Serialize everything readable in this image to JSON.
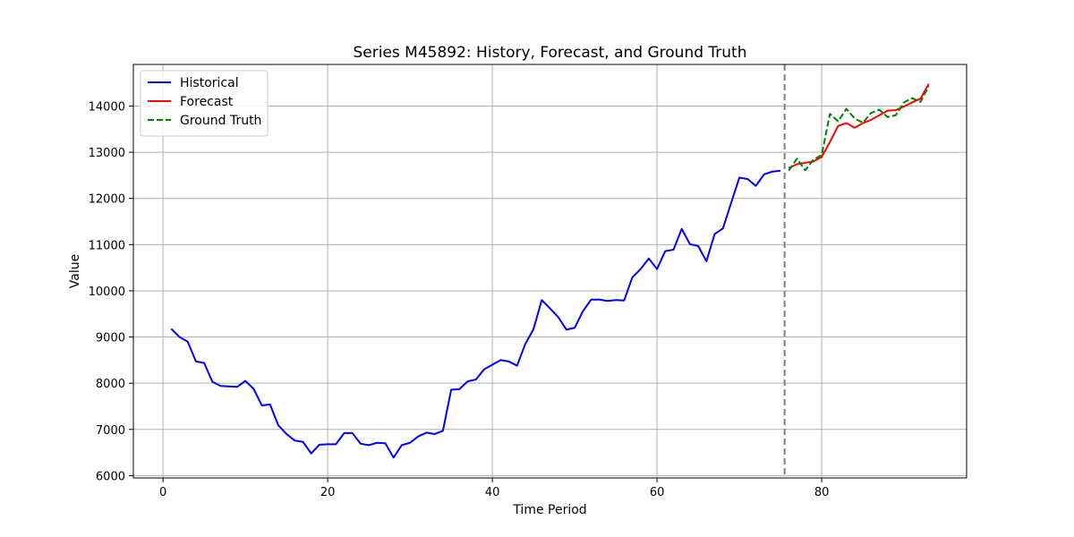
{
  "chart_data": {
    "type": "line",
    "title": "Series M45892: History, Forecast, and Ground Truth",
    "xlabel": "Time Period",
    "ylabel": "Value",
    "xlim": [
      -3.6,
      97.6
    ],
    "ylim": [
      5950,
      14900
    ],
    "xticks": [
      0,
      20,
      40,
      60,
      80
    ],
    "yticks": [
      6000,
      7000,
      8000,
      9000,
      10000,
      11000,
      12000,
      13000,
      14000
    ],
    "grid": true,
    "legend_position": "top-left",
    "forecast_start": 75.5,
    "series": [
      {
        "name": "Historical",
        "color": "#0000ff",
        "style": "solid",
        "x": [
          1,
          2,
          3,
          4,
          5,
          6,
          7,
          8,
          9,
          10,
          11,
          12,
          13,
          14,
          15,
          16,
          17,
          18,
          19,
          20,
          21,
          22,
          23,
          24,
          25,
          26,
          27,
          28,
          29,
          30,
          31,
          32,
          33,
          34,
          35,
          36,
          37,
          38,
          39,
          40,
          41,
          42,
          43,
          44,
          45,
          46,
          47,
          48,
          49,
          50,
          51,
          52,
          53,
          54,
          55,
          56,
          57,
          58,
          59,
          60,
          61,
          62,
          63,
          64,
          65,
          66,
          67,
          68,
          69,
          70,
          71,
          72,
          73,
          74,
          75
        ],
        "y": [
          9180,
          9000,
          8900,
          8470,
          8440,
          8030,
          7940,
          7930,
          7920,
          8050,
          7880,
          7520,
          7540,
          7090,
          6900,
          6760,
          6730,
          6480,
          6670,
          6680,
          6680,
          6920,
          6920,
          6690,
          6660,
          6710,
          6700,
          6390,
          6660,
          6710,
          6850,
          6930,
          6900,
          6970,
          7860,
          7870,
          8040,
          8080,
          8300,
          8400,
          8500,
          8470,
          8380,
          8850,
          9170,
          9800,
          9620,
          9430,
          9160,
          9200,
          9560,
          9810,
          9810,
          9780,
          9800,
          9790,
          10290,
          10470,
          10700,
          10470,
          10860,
          10890,
          11340,
          11010,
          10970,
          10640,
          11230,
          11350,
          11900,
          12450,
          12420,
          12270,
          12520,
          12580,
          12600
        ]
      },
      {
        "name": "Forecast",
        "color": "#ff0000",
        "style": "solid",
        "x": [
          76,
          77,
          78,
          79,
          80,
          81,
          82,
          83,
          84,
          85,
          86,
          87,
          88,
          89,
          90,
          91,
          92,
          93
        ],
        "y": [
          12660,
          12740,
          12770,
          12800,
          12900,
          13220,
          13570,
          13630,
          13530,
          13630,
          13700,
          13800,
          13900,
          13910,
          13990,
          14080,
          14160,
          14480
        ]
      },
      {
        "name": "Ground Truth",
        "color": "#008000",
        "style": "dashed",
        "x": [
          76,
          77,
          78,
          79,
          80,
          81,
          82,
          83,
          84,
          85,
          86,
          87,
          88,
          89,
          90,
          91,
          92,
          93
        ],
        "y": [
          12600,
          12860,
          12610,
          12840,
          12940,
          13830,
          13670,
          13940,
          13730,
          13640,
          13850,
          13920,
          13760,
          13800,
          14080,
          14170,
          14090,
          14430
        ]
      }
    ]
  }
}
